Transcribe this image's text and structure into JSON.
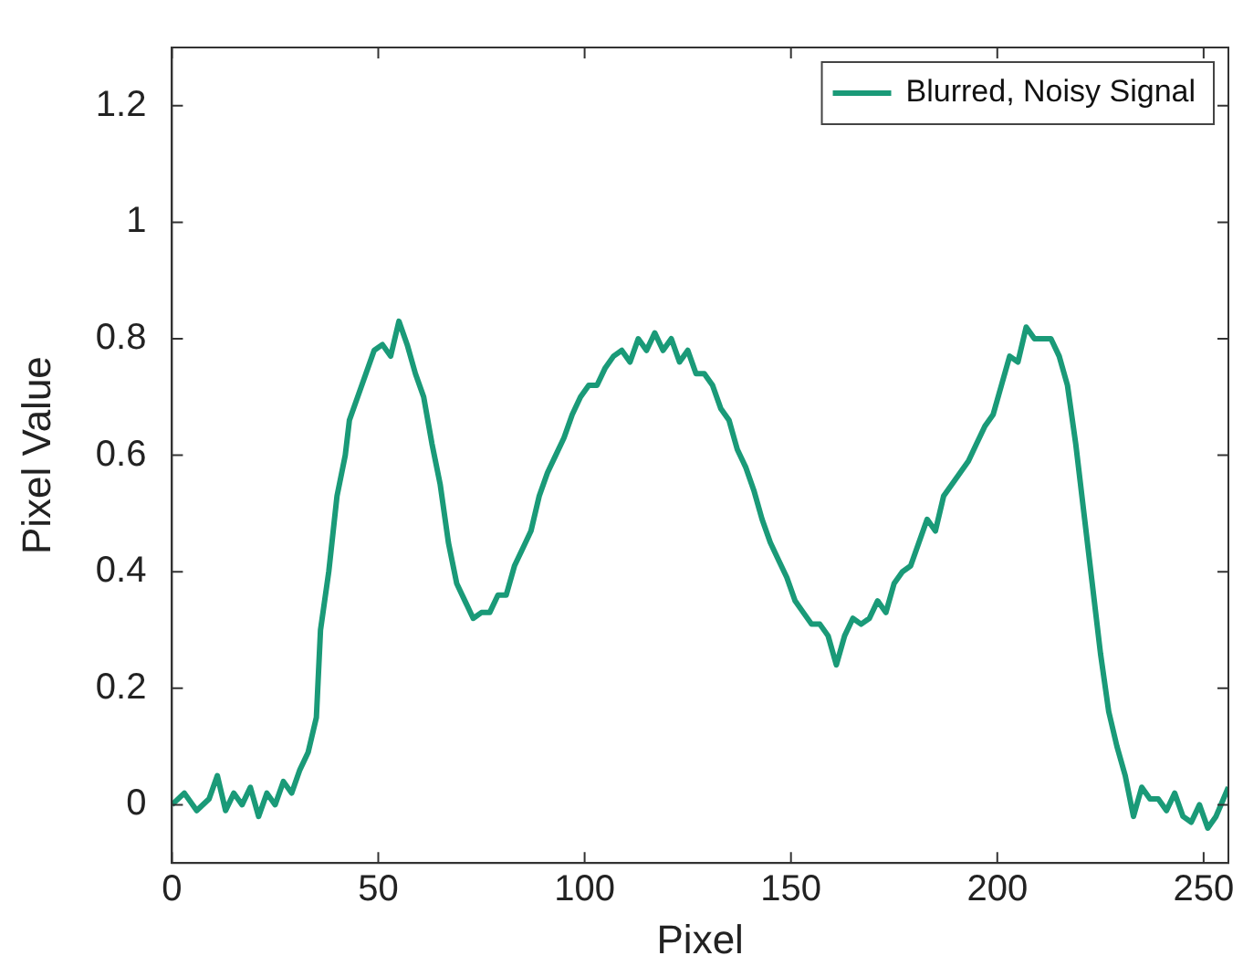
{
  "chart_data": {
    "type": "line",
    "xlabel": "Pixel",
    "ylabel": "Pixel Value",
    "xlim": [
      0,
      256
    ],
    "xticks": [
      0,
      50,
      100,
      150,
      200,
      250
    ],
    "ylim": [
      -0.1,
      1.3
    ],
    "yticks": [
      0,
      0.2,
      0.4,
      0.6,
      0.8,
      1,
      1.2
    ],
    "grid": false,
    "legend": "top right",
    "marker": "none",
    "line_style": "solid",
    "series": [
      {
        "name": "Blurred, Noisy Signal",
        "color": "#1a9a78",
        "x": [
          0,
          3,
          6,
          9,
          11,
          13,
          15,
          17,
          19,
          21,
          23,
          25,
          27,
          29,
          31,
          33,
          35,
          36,
          38,
          40,
          42,
          43,
          45,
          47,
          49,
          51,
          53,
          55,
          57,
          59,
          61,
          63,
          65,
          67,
          69,
          71,
          73,
          75,
          77,
          79,
          81,
          83,
          85,
          87,
          89,
          91,
          93,
          95,
          97,
          99,
          101,
          103,
          105,
          107,
          109,
          111,
          113,
          115,
          117,
          119,
          121,
          123,
          125,
          127,
          129,
          131,
          133,
          135,
          137,
          139,
          141,
          143,
          145,
          147,
          149,
          151,
          153,
          155,
          157,
          159,
          161,
          163,
          165,
          167,
          169,
          171,
          173,
          175,
          177,
          179,
          181,
          183,
          185,
          187,
          189,
          191,
          193,
          195,
          197,
          199,
          201,
          203,
          205,
          207,
          209,
          211,
          213,
          215,
          217,
          219,
          221,
          223,
          225,
          227,
          229,
          231,
          233,
          235,
          237,
          239,
          241,
          243,
          245,
          247,
          249,
          251,
          253,
          256
        ],
        "values": [
          0,
          0.02,
          -0.01,
          0.01,
          0.05,
          -0.01,
          0.02,
          0,
          0.03,
          -0.02,
          0.02,
          0,
          0.04,
          0.02,
          0.06,
          0.09,
          0.15,
          0.3,
          0.4,
          0.53,
          0.6,
          0.66,
          0.7,
          0.74,
          0.78,
          0.79,
          0.77,
          0.83,
          0.79,
          0.74,
          0.7,
          0.62,
          0.55,
          0.45,
          0.38,
          0.35,
          0.32,
          0.33,
          0.33,
          0.36,
          0.36,
          0.41,
          0.44,
          0.47,
          0.53,
          0.57,
          0.6,
          0.63,
          0.67,
          0.7,
          0.72,
          0.72,
          0.75,
          0.77,
          0.78,
          0.76,
          0.8,
          0.78,
          0.81,
          0.78,
          0.8,
          0.76,
          0.78,
          0.74,
          0.74,
          0.72,
          0.68,
          0.66,
          0.61,
          0.58,
          0.54,
          0.49,
          0.45,
          0.42,
          0.39,
          0.35,
          0.33,
          0.31,
          0.31,
          0.29,
          0.24,
          0.29,
          0.32,
          0.31,
          0.32,
          0.35,
          0.33,
          0.38,
          0.4,
          0.41,
          0.45,
          0.49,
          0.47,
          0.53,
          0.55,
          0.57,
          0.59,
          0.62,
          0.65,
          0.67,
          0.72,
          0.77,
          0.76,
          0.82,
          0.8,
          0.8,
          0.8,
          0.77,
          0.72,
          0.62,
          0.5,
          0.38,
          0.26,
          0.16,
          0.1,
          0.05,
          -0.02,
          0.03,
          0.01,
          0.01,
          -0.01,
          0.02,
          -0.02,
          -0.03,
          0,
          -0.04,
          -0.02,
          0.03
        ]
      }
    ]
  }
}
